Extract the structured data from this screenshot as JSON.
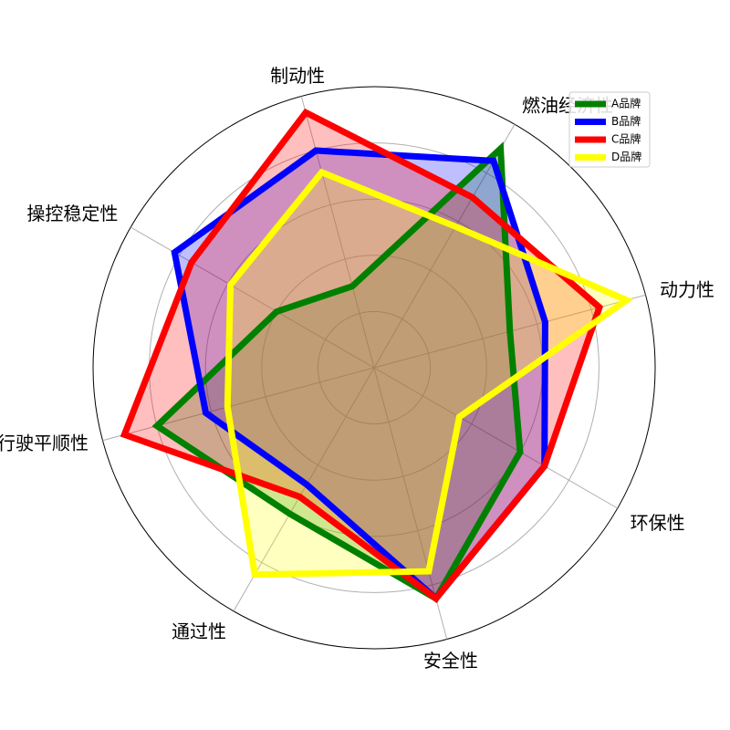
{
  "chart_data": {
    "type": "radar",
    "axes": [
      "动力性",
      "燃油经济性",
      "制动性",
      "操控稳定性",
      "行驶平顺性",
      "通过性",
      "安全性",
      "环保性"
    ],
    "rmax": 10,
    "rticks": [
      2,
      4,
      6,
      8,
      10
    ],
    "grid": true,
    "legend_position": "top-right",
    "series": [
      {
        "name": "A品牌",
        "color": "#008000",
        "values": [
          5,
          9,
          3,
          4,
          8,
          6,
          8.5,
          6
        ]
      },
      {
        "name": "B品牌",
        "color": "#0000ff",
        "values": [
          6.3,
          8.5,
          8,
          8.2,
          6.2,
          4.8,
          8.5,
          7
        ]
      },
      {
        "name": "C品牌",
        "color": "#ff0000",
        "values": [
          8.3,
          7,
          9.4,
          7.5,
          9.2,
          5.3,
          8.5,
          7
        ]
      },
      {
        "name": "D品牌",
        "color": "#ffff00",
        "values": [
          9.3,
          5.8,
          7.2,
          5.9,
          5.4,
          8.5,
          7.5,
          3.5
        ]
      }
    ]
  }
}
